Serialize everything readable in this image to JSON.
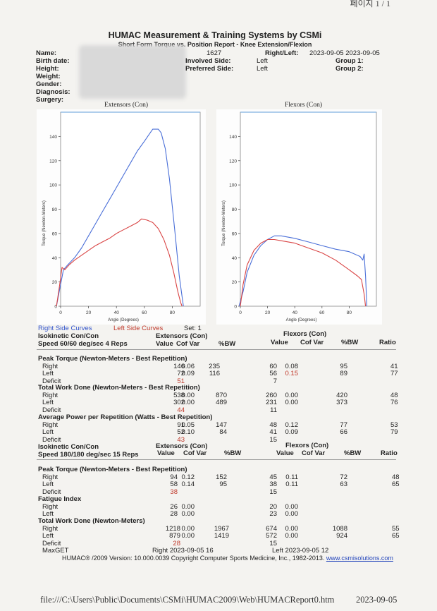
{
  "page_indicator": "페이지 1 / 1",
  "header": {
    "title": "HUMAC Measurement & Training Systems by CSMi",
    "subtitle": "Short Form Torque vs. Position Report - Knee Extension/Flexion"
  },
  "patient": {
    "labels": [
      "Name:",
      "Birth date:",
      "Height:",
      "Weight:",
      "Gender:",
      "Diagnosis:",
      "Surgery:"
    ],
    "id": "1627",
    "right_left_label": "Right/Left:",
    "dates": "2023-09-05 2023-09-05",
    "involved_label": "Involved Side:",
    "involved_value": "Left",
    "preferred_label": "Preferred Side:",
    "preferred_value": "Left",
    "group1_label": "Group 1:",
    "group2_label": "Group 2:"
  },
  "chart_data": [
    {
      "type": "line",
      "title": "Extensors (Con)",
      "xlabel": "Angle (Degrees)",
      "ylabel": "Torque (Newton-Meters)",
      "xlim": [
        0,
        100
      ],
      "ylim": [
        0,
        160
      ],
      "xticks": [
        0,
        20,
        40,
        60,
        80
      ],
      "yticks": [
        0,
        20,
        40,
        60,
        80,
        100,
        120,
        140
      ],
      "series": [
        {
          "name": "Right",
          "color": "#4a6fd8",
          "points": [
            [
              -3,
              0
            ],
            [
              -1,
              12
            ],
            [
              2,
              30
            ],
            [
              5,
              34
            ],
            [
              10,
              40
            ],
            [
              15,
              48
            ],
            [
              20,
              58
            ],
            [
              25,
              68
            ],
            [
              30,
              78
            ],
            [
              35,
              88
            ],
            [
              40,
              98
            ],
            [
              45,
              108
            ],
            [
              50,
              118
            ],
            [
              55,
              128
            ],
            [
              60,
              136
            ],
            [
              63,
              141
            ],
            [
              66,
              146
            ],
            [
              70,
              146
            ],
            [
              72,
              143
            ],
            [
              75,
              130
            ],
            [
              78,
              105
            ],
            [
              82,
              60
            ],
            [
              85,
              25
            ],
            [
              87,
              8
            ],
            [
              88,
              0
            ]
          ]
        },
        {
          "name": "Left",
          "color": "#d94444",
          "points": [
            [
              -3,
              0
            ],
            [
              -1,
              15
            ],
            [
              1,
              32
            ],
            [
              3,
              30
            ],
            [
              6,
              34
            ],
            [
              10,
              38
            ],
            [
              15,
              42
            ],
            [
              20,
              46
            ],
            [
              25,
              50
            ],
            [
              30,
              53
            ],
            [
              35,
              56
            ],
            [
              40,
              60
            ],
            [
              45,
              63
            ],
            [
              50,
              66
            ],
            [
              55,
              69
            ],
            [
              58,
              72
            ],
            [
              62,
              71
            ],
            [
              66,
              69
            ],
            [
              70,
              64
            ],
            [
              74,
              55
            ],
            [
              78,
              42
            ],
            [
              81,
              28
            ],
            [
              84,
              12
            ],
            [
              86,
              3
            ],
            [
              87,
              0
            ]
          ]
        }
      ]
    },
    {
      "type": "line",
      "title": "Flexors (Con)",
      "xlabel": "Angle (Degrees)",
      "ylabel": "Torque (Newton-Meters)",
      "xlim": [
        0,
        100
      ],
      "ylim": [
        0,
        160
      ],
      "xticks": [
        0,
        20,
        40,
        60,
        80
      ],
      "yticks": [
        0,
        20,
        40,
        60,
        80,
        100,
        120,
        140
      ],
      "series": [
        {
          "name": "Right",
          "color": "#4a6fd8",
          "points": [
            [
              -1,
              0
            ],
            [
              2,
              12
            ],
            [
              5,
              28
            ],
            [
              10,
              42
            ],
            [
              15,
              50
            ],
            [
              20,
              55
            ],
            [
              25,
              58
            ],
            [
              30,
              58
            ],
            [
              40,
              56
            ],
            [
              50,
              53
            ],
            [
              60,
              50
            ],
            [
              70,
              47
            ],
            [
              80,
              45
            ],
            [
              88,
              41
            ],
            [
              90,
              38
            ],
            [
              91,
              43
            ],
            [
              92,
              25
            ],
            [
              93,
              0
            ]
          ]
        },
        {
          "name": "Left",
          "color": "#d94444",
          "points": [
            [
              0,
              0
            ],
            [
              2,
              18
            ],
            [
              5,
              34
            ],
            [
              10,
              46
            ],
            [
              15,
              52
            ],
            [
              20,
              55
            ],
            [
              25,
              55
            ],
            [
              30,
              54
            ],
            [
              40,
              52
            ],
            [
              50,
              48
            ],
            [
              60,
              44
            ],
            [
              70,
              38
            ],
            [
              80,
              30
            ],
            [
              86,
              25
            ],
            [
              89,
              22
            ],
            [
              91,
              10
            ],
            [
              92,
              0
            ]
          ]
        }
      ]
    }
  ],
  "legend": {
    "right": "Right Side Curves",
    "left": "Left Side Curves",
    "set": "Set: 1"
  },
  "section1": {
    "title_line1": "Isokinetic Con/Con",
    "title_line2": "Speed 60/60 deg/sec 4 Reps",
    "ext_header": "Extensors (Con)",
    "flex_header": "Flexors (Con)",
    "col_value": "Value",
    "col_cofvar": "Cof Var",
    "col_bw": "%BW",
    "col_ratio": "Ratio"
  },
  "peak_torque_1": {
    "title": "Peak Torque (Newton-Meters - Best Repetition)",
    "rows": [
      {
        "label": "Right",
        "ev": "146",
        "ec": "0.06",
        "eb": "235",
        "fv": "60",
        "fc": "0.08",
        "fb": "95",
        "r": "41"
      },
      {
        "label": "Left",
        "ev": "72",
        "ec": "0.09",
        "eb": "116",
        "fv": "56",
        "fc": "0.15",
        "fb": "89",
        "r": "77"
      },
      {
        "label": "Deficit",
        "ev": "51",
        "ec": "",
        "eb": "",
        "fv": "7",
        "fc": "",
        "fb": "",
        "r": ""
      }
    ]
  },
  "total_work_1": {
    "title": "Total Work Done (Newton-Meters - Best Repetition)",
    "rows": [
      {
        "label": "Right",
        "ev": "538",
        "ec": "0.00",
        "eb": "870",
        "fv": "260",
        "fc": "0.00",
        "fb": "420",
        "r": "48"
      },
      {
        "label": "Left",
        "ev": "302",
        "ec": "0.00",
        "eb": "489",
        "fv": "231",
        "fc": "0.00",
        "fb": "373",
        "r": "76"
      },
      {
        "label": "Deficit",
        "ev": "44",
        "ec": "",
        "eb": "",
        "fv": "11",
        "fc": "",
        "fb": "",
        "r": ""
      }
    ]
  },
  "avg_power_1": {
    "title": "Average Power per Repetition (Watts - Best Repetition)",
    "rows": [
      {
        "label": "Right",
        "ev": "91",
        "ec": "0.05",
        "eb": "147",
        "fv": "48",
        "fc": "0.12",
        "fb": "77",
        "r": "53"
      },
      {
        "label": "Left",
        "ev": "52",
        "ec": "0.10",
        "eb": "84",
        "fv": "41",
        "fc": "0.09",
        "fb": "66",
        "r": "79"
      },
      {
        "label": "Deficit",
        "ev": "43",
        "ec": "",
        "eb": "",
        "fv": "15",
        "fc": "",
        "fb": "",
        "r": ""
      }
    ]
  },
  "section2": {
    "title_line1": "Isokinetic Con/Con",
    "title_line2": "Speed 180/180 deg/sec 15 Reps",
    "ext_header": "Extensors (Con)",
    "flex_header": "Flexors (Con)",
    "col_value": "Value",
    "col_cofvar": "Cof Var",
    "col_bw": "%BW",
    "col_ratio": "Ratio"
  },
  "peak_torque_2": {
    "title": "Peak Torque (Newton-Meters - Best Repetition)",
    "rows": [
      {
        "label": "Right",
        "ev": "94",
        "ec": "0.12",
        "eb": "152",
        "fv": "45",
        "fc": "0.11",
        "fb": "72",
        "r": "48"
      },
      {
        "label": "Left",
        "ev": "58",
        "ec": "0.14",
        "eb": "95",
        "fv": "38",
        "fc": "0.11",
        "fb": "63",
        "r": "65"
      },
      {
        "label": "Deficit",
        "ev": "38",
        "ec": "",
        "eb": "",
        "fv": "15",
        "fc": "",
        "fb": "",
        "r": ""
      }
    ]
  },
  "fatigue": {
    "title": "Fatigue Index",
    "rows": [
      {
        "label": "Right",
        "ev": "26",
        "ec": "0.00",
        "eb": "",
        "fv": "20",
        "fc": "0.00",
        "fb": "",
        "r": ""
      },
      {
        "label": "Left",
        "ev": "28",
        "ec": "0.00",
        "eb": "",
        "fv": "23",
        "fc": "0.00",
        "fb": "",
        "r": ""
      }
    ]
  },
  "total_work_2": {
    "title": "Total Work Done (Newton-Meters)",
    "rows": [
      {
        "label": "Right",
        "ev": "1218",
        "ec": "0.00",
        "eb": "1967",
        "fv": "674",
        "fc": "0.00",
        "fb": "1088",
        "r": "55"
      },
      {
        "label": "Left",
        "ev": "879",
        "ec": "0.00",
        "eb": "1419",
        "fv": "572",
        "fc": "0.00",
        "fb": "924",
        "r": "65"
      },
      {
        "label": "Deficit",
        "ev": "28",
        "ec": "",
        "eb": "",
        "fv": "15",
        "fc": "",
        "fb": "",
        "r": ""
      }
    ]
  },
  "maxget": {
    "label": "MaxGET",
    "right": "Right 2023-09-05 16",
    "left": "Left 2023-09-05 12"
  },
  "copyright": {
    "text": "HUMAC® /2009 Version: 10.000.0039 Copyright Computer Sports Medicine, Inc., 1982-2013.",
    "link": "www.csmisolutions.com"
  },
  "footer": {
    "path": "file:///C:\\Users\\Public\\Documents\\CSMi\\HUMAC2009\\Web\\HUMACReport0.htm",
    "date": "2023-09-05"
  }
}
